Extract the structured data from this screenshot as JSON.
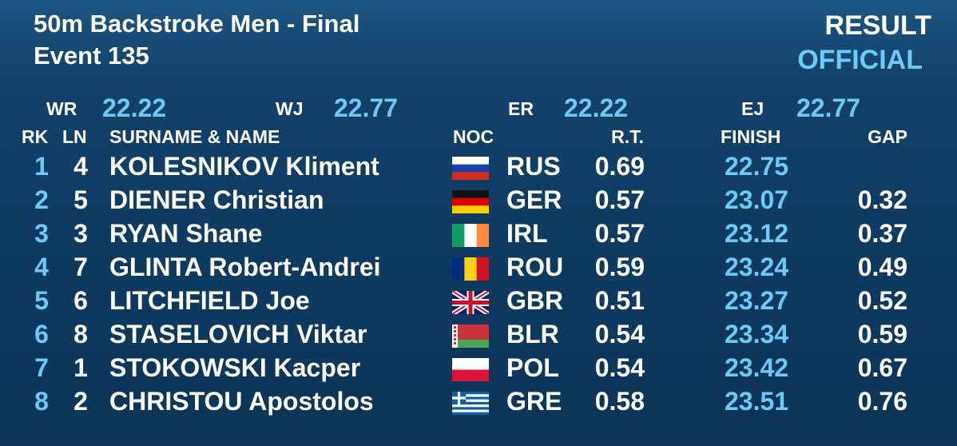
{
  "header": {
    "title": "50m Backstroke Men - Final",
    "event": "Event 135",
    "status": "RESULT",
    "status_detail": "OFFICIAL"
  },
  "records": [
    {
      "label": "WR",
      "value": "22.22"
    },
    {
      "label": "WJ",
      "value": "22.77"
    },
    {
      "label": "ER",
      "value": "22.22"
    },
    {
      "label": "EJ",
      "value": "22.77"
    }
  ],
  "columns": {
    "rank": "RK",
    "lane": "LN",
    "name": "SURNAME & NAME",
    "noc": "NOC",
    "rt": "R.T.",
    "finish": "FINISH",
    "gap": "GAP"
  },
  "rows": [
    {
      "rank": 1,
      "lane": 4,
      "name": "KOLESNIKOV Kliment",
      "noc": "RUS",
      "rt": "0.69",
      "finish": "22.75"
    },
    {
      "rank": 2,
      "lane": 5,
      "name": "DIENER Christian",
      "noc": "GER",
      "rt": "0.57",
      "finish": "23.07",
      "gap": "0.32"
    },
    {
      "rank": 3,
      "lane": 3,
      "name": "RYAN Shane",
      "noc": "IRL",
      "rt": "0.57",
      "finish": "23.12",
      "gap": "0.37"
    },
    {
      "rank": 4,
      "lane": 7,
      "name": "GLINTA Robert-Andrei",
      "noc": "ROU",
      "rt": "0.59",
      "finish": "23.24",
      "gap": "0.49"
    },
    {
      "rank": 5,
      "lane": 6,
      "name": "LITCHFIELD Joe",
      "noc": "GBR",
      "rt": "0.51",
      "finish": "23.27",
      "gap": "0.52"
    },
    {
      "rank": 6,
      "lane": 8,
      "name": "STASELOVICH Viktar",
      "noc": "BLR",
      "rt": "0.54",
      "finish": "23.34",
      "gap": "0.59"
    },
    {
      "rank": 7,
      "lane": 1,
      "name": "STOKOWSKI Kacper",
      "noc": "POL",
      "rt": "0.54",
      "finish": "23.42",
      "gap": "0.67"
    },
    {
      "rank": 8,
      "lane": 2,
      "name": "CHRISTOU Apostolos",
      "noc": "GRE",
      "rt": "0.58",
      "finish": "23.51",
      "gap": "0.76"
    }
  ]
}
